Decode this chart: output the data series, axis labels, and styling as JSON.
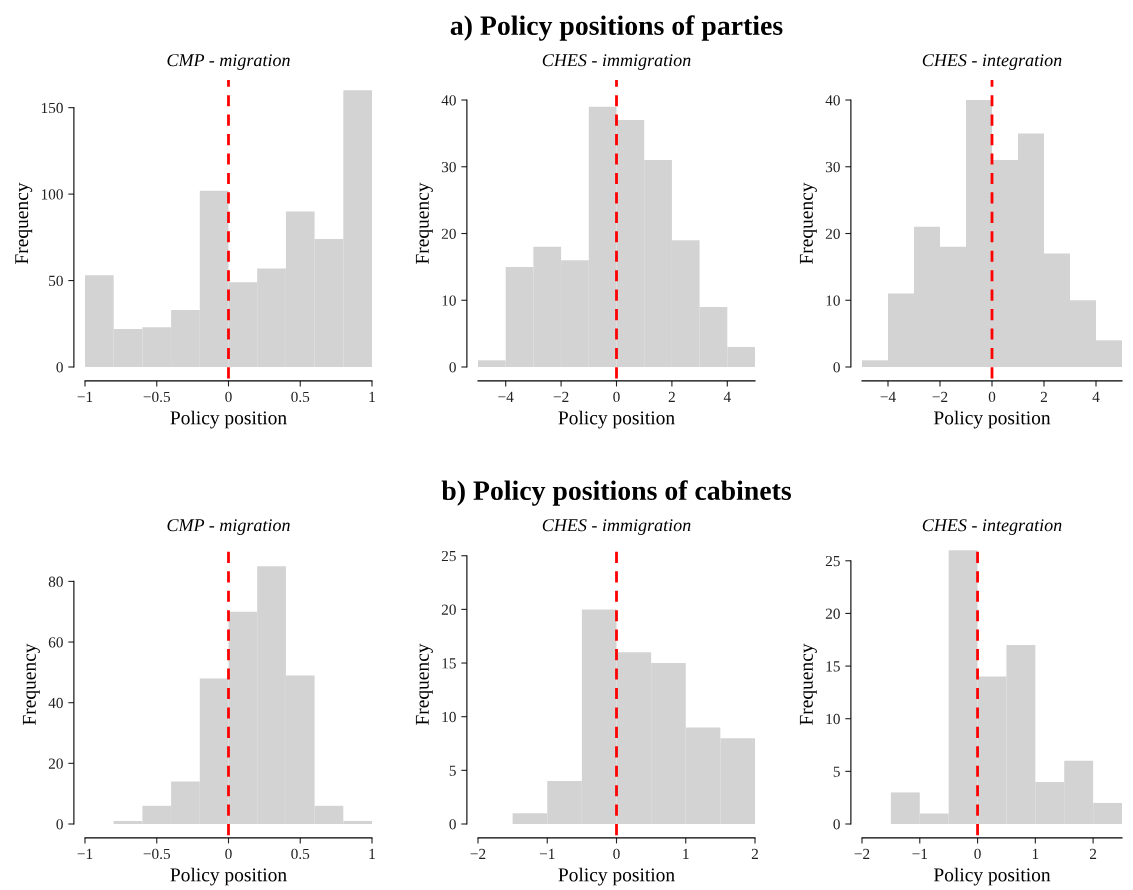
{
  "chart_data": [
    {
      "type": "histogram",
      "subtitle": "CMP - migration",
      "xlabel": "Policy position",
      "ylabel": "Frequency",
      "color": "#d3d3d3",
      "bins": [
        -1,
        -0.8,
        -0.6,
        -0.4,
        -0.2,
        0,
        0.2,
        0.4,
        0.6,
        0.8,
        1
      ],
      "values": [
        53,
        22,
        23,
        33,
        102,
        49,
        57,
        90,
        74,
        160
      ],
      "xlim": [
        -1,
        1
      ],
      "ylim": [
        0,
        166
      ],
      "xticks": [
        {
          "value": -1,
          "label": "−1"
        },
        {
          "value": -0.5,
          "label": "−0.5"
        },
        0,
        0.5,
        1
      ],
      "yticks": [
        0,
        50,
        100,
        150
      ],
      "ref_lines": [
        {
          "axis": "x",
          "value": 0,
          "color": "#ff0000",
          "line_style": "dashed"
        }
      ]
    },
    {
      "type": "histogram",
      "title": "a) Policy positions of parties",
      "subtitle": "CHES - immigration",
      "xlabel": "Policy position",
      "ylabel": "Frequency",
      "color": "#d3d3d3",
      "bins": [
        -5,
        -4,
        -3,
        -2,
        -1,
        0,
        1,
        2,
        3,
        4,
        5
      ],
      "values": [
        1,
        15,
        18,
        16,
        39,
        37,
        31,
        19,
        9,
        3
      ],
      "xlim": [
        -5,
        5
      ],
      "ylim": [
        0,
        43
      ],
      "xticks": [
        {
          "value": -4,
          "label": "−4"
        },
        {
          "value": -2,
          "label": "−2"
        },
        0,
        2,
        4
      ],
      "yticks": [
        0,
        10,
        20,
        30,
        40
      ],
      "ref_lines": [
        {
          "axis": "x",
          "value": 0,
          "color": "#ff0000",
          "line_style": "dashed"
        }
      ]
    },
    {
      "type": "histogram",
      "subtitle": "CHES - integration",
      "xlabel": "Policy position",
      "ylabel": "Frequency",
      "color": "#d3d3d3",
      "bins": [
        -5,
        -4,
        -3,
        -2,
        -1,
        0,
        1,
        2,
        3,
        4,
        5
      ],
      "values": [
        1,
        11,
        21,
        18,
        40,
        31,
        35,
        17,
        10,
        4
      ],
      "xlim": [
        -5,
        5
      ],
      "ylim": [
        0,
        43
      ],
      "xticks": [
        {
          "value": -4,
          "label": "−4"
        },
        {
          "value": -2,
          "label": "−2"
        },
        0,
        2,
        4
      ],
      "yticks": [
        0,
        10,
        20,
        30,
        40
      ],
      "ref_lines": [
        {
          "axis": "x",
          "value": 0,
          "color": "#ff0000",
          "line_style": "dashed"
        }
      ]
    },
    {
      "type": "histogram",
      "subtitle": "CMP - migration",
      "xlabel": "Policy position",
      "ylabel": "Frequency",
      "color": "#d3d3d3",
      "bins": [
        -0.8,
        -0.6,
        -0.4,
        -0.2,
        0,
        0.2,
        0.4,
        0.6,
        0.8,
        1
      ],
      "values": [
        1,
        6,
        14,
        48,
        70,
        85,
        49,
        6,
        1
      ],
      "xlim": [
        -1,
        1
      ],
      "ylim": [
        0,
        92
      ],
      "xticks": [
        {
          "value": -1,
          "label": "−1"
        },
        {
          "value": -0.5,
          "label": "−0.5"
        },
        0,
        0.5,
        1
      ],
      "yticks": [
        0,
        20,
        40,
        60,
        80
      ],
      "ref_lines": [
        {
          "axis": "x",
          "value": 0,
          "color": "#ff0000",
          "line_style": "dashed"
        }
      ]
    },
    {
      "type": "histogram",
      "title": "b) Policy positions of cabinets",
      "subtitle": "CHES - immigration",
      "xlabel": "Policy position",
      "ylabel": "Frequency",
      "color": "#d3d3d3",
      "bins": [
        -1.5,
        -1,
        -0.5,
        0,
        0.5,
        1,
        1.5,
        2
      ],
      "values": [
        1,
        4,
        20,
        16,
        15,
        9,
        8
      ],
      "xlim": [
        -2,
        2
      ],
      "ylim": [
        0,
        26
      ],
      "xticks": [
        {
          "value": -2,
          "label": "−2"
        },
        {
          "value": -1,
          "label": "−1"
        },
        0,
        1,
        2
      ],
      "yticks": [
        0,
        5,
        10,
        15,
        20,
        25
      ],
      "ref_lines": [
        {
          "axis": "x",
          "value": 0,
          "color": "#ff0000",
          "line_style": "dashed"
        }
      ]
    },
    {
      "type": "histogram",
      "subtitle": "CHES - integration",
      "xlabel": "Policy position",
      "ylabel": "Frequency",
      "color": "#d3d3d3",
      "bins": [
        -1.5,
        -1,
        -0.5,
        0,
        0.5,
        1,
        1.5,
        2,
        2.5
      ],
      "values": [
        3,
        1,
        26,
        14,
        17,
        4,
        6,
        2
      ],
      "xlim": [
        -2,
        2.5
      ],
      "ylim": [
        0,
        26.5
      ],
      "xticks": [
        {
          "value": -2,
          "label": "−2"
        },
        {
          "value": -1,
          "label": "−1"
        },
        0,
        1,
        2
      ],
      "yticks": [
        0,
        5,
        10,
        15,
        20,
        25
      ],
      "ref_lines": [
        {
          "axis": "x",
          "value": 0,
          "color": "#ff0000",
          "line_style": "dashed"
        }
      ]
    }
  ]
}
